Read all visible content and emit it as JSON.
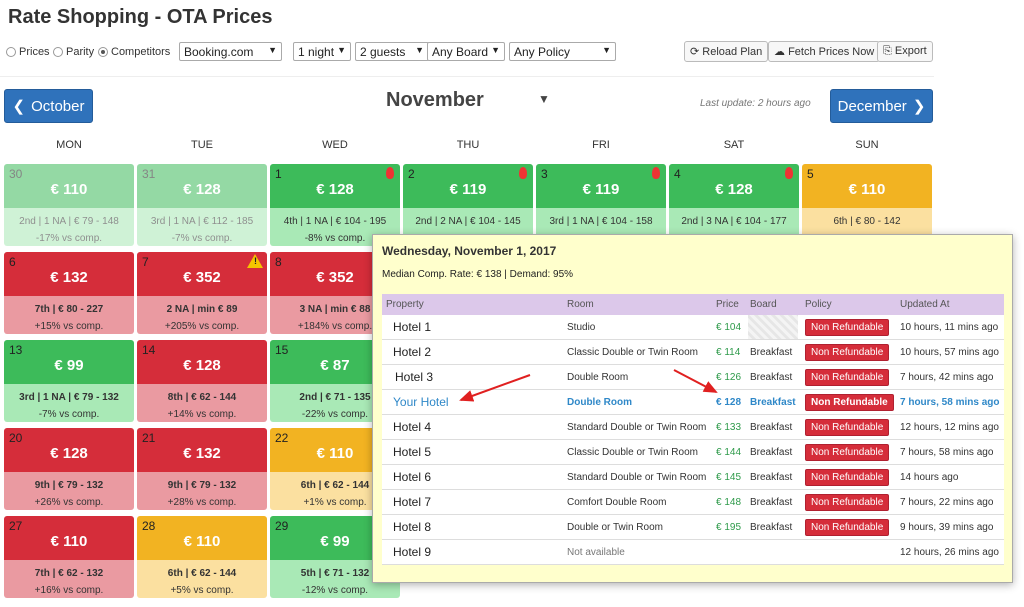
{
  "title": "Rate Shopping - OTA Prices",
  "modes": [
    {
      "label": "Prices",
      "selected": false
    },
    {
      "label": "Parity",
      "selected": false
    },
    {
      "label": "Competitors",
      "selected": true
    }
  ],
  "filters": {
    "channel": "Booking.com",
    "nights": "1 night",
    "guests": "2 guests",
    "board": "Any Board",
    "policy": "Any Policy"
  },
  "actions": {
    "reload": "Reload Plan",
    "fetch": "Fetch Prices Now",
    "export": "Export"
  },
  "nav": {
    "prev": "October",
    "next": "December",
    "month": "November",
    "last_update": "Last update: 2 hours ago"
  },
  "weekdays": [
    "MON",
    "TUE",
    "WED",
    "THU",
    "FRI",
    "SAT",
    "SUN"
  ],
  "calendar": {
    "r0": [
      {
        "day": "30",
        "price": "€ 110",
        "l1": "2nd | 1 NA | € 79 - 148",
        "l2": "-17% vs comp."
      },
      {
        "day": "31",
        "price": "€ 128",
        "l1": "3rd | 1 NA | € 112 - 185",
        "l2": "-7% vs comp."
      },
      {
        "day": "1",
        "price": "€ 128",
        "l1": "4th | 1 NA | € 104 - 195",
        "l2": "-8% vs comp."
      },
      {
        "day": "2",
        "price": "€ 119",
        "l1": "2nd | 2 NA | € 104 - 145",
        "l2": ""
      },
      {
        "day": "3",
        "price": "€ 119",
        "l1": "3rd | 1 NA | € 104 - 158",
        "l2": ""
      },
      {
        "day": "4",
        "price": "€ 128",
        "l1": "2nd | 3 NA | € 104 - 177",
        "l2": ""
      },
      {
        "day": "5",
        "price": "€ 110",
        "l1": "6th | € 80 - 142",
        "l2": ""
      }
    ],
    "r1": [
      {
        "day": "6",
        "price": "€ 132",
        "l1": "7th | € 80 - 227",
        "l2": "+15% vs comp."
      },
      {
        "day": "7",
        "price": "€ 352",
        "l1": "2 NA | min € 89",
        "l2": "+205% vs comp."
      },
      {
        "day": "8",
        "price": "€ 352",
        "l1": "3 NA | min € 88",
        "l2": "+184% vs comp."
      }
    ],
    "r2": [
      {
        "day": "13",
        "price": "€ 99",
        "l1": "3rd | 1 NA | € 79 - 132",
        "l2": "-7% vs comp."
      },
      {
        "day": "14",
        "price": "€ 128",
        "l1": "8th | € 62 - 144",
        "l2": "+14% vs comp."
      },
      {
        "day": "15",
        "price": "€ 87",
        "l1": "2nd | € 71 - 135",
        "l2": "-22% vs comp."
      }
    ],
    "r3": [
      {
        "day": "20",
        "price": "€ 128",
        "l1": "9th | € 79 - 132",
        "l2": "+26% vs comp."
      },
      {
        "day": "21",
        "price": "€ 132",
        "l1": "9th | € 79 - 132",
        "l2": "+28% vs comp."
      },
      {
        "day": "22",
        "price": "€ 110",
        "l1": "6th | € 62 - 144",
        "l2": "+1% vs comp."
      }
    ],
    "r4": [
      {
        "day": "27",
        "price": "€ 110",
        "l1": "7th | € 62 - 132",
        "l2": "+16% vs comp."
      },
      {
        "day": "28",
        "price": "€ 110",
        "l1": "6th | € 62 - 144",
        "l2": "+5% vs comp."
      },
      {
        "day": "29",
        "price": "€ 99",
        "l1": "5th | € 71 - 132",
        "l2": "-12% vs comp."
      }
    ]
  },
  "popup": {
    "title": "Wednesday, November 1, 2017",
    "stats": "Median Comp. Rate: € 138  |  Demand: 95%",
    "headers": {
      "property": "Property",
      "room": "Room",
      "price": "Price",
      "board": "Board",
      "policy": "Policy",
      "updated": "Updated At"
    },
    "rows": [
      {
        "property": "Hotel 1",
        "room": "Studio",
        "price": "€ 104",
        "board": "",
        "policy": "Non Refundable",
        "updated": "10 hours, 11 mins ago"
      },
      {
        "property": "Hotel 2",
        "room": "Classic Double or Twin Room",
        "price": "€ 114",
        "board": "Breakfast",
        "policy": "Non Refundable",
        "updated": "10 hours, 57 mins ago"
      },
      {
        "property": "Hotel 3",
        "room": "Double Room",
        "price": "€ 126",
        "board": "Breakfast",
        "policy": "Non Refundable",
        "updated": "7 hours, 42 mins ago"
      },
      {
        "property": "Your Hotel",
        "room": "Double Room",
        "price": "€ 128",
        "board": "Breakfast",
        "policy": "Non Refundable",
        "updated": "7 hours, 58 mins ago"
      },
      {
        "property": "Hotel 4",
        "room": "Standard Double or Twin Room",
        "price": "€ 133",
        "board": "Breakfast",
        "policy": "Non Refundable",
        "updated": "12 hours, 12 mins ago"
      },
      {
        "property": "Hotel 5",
        "room": "Classic Double or Twin Room",
        "price": "€ 144",
        "board": "Breakfast",
        "policy": "Non Refundable",
        "updated": "7 hours, 58 mins ago"
      },
      {
        "property": "Hotel 6",
        "room": "Standard Double or Twin Room",
        "price": "€ 145",
        "board": "Breakfast",
        "policy": "Non Refundable",
        "updated": "14 hours ago"
      },
      {
        "property": "Hotel 7",
        "room": "Comfort Double Room",
        "price": "€ 148",
        "board": "Breakfast",
        "policy": "Non Refundable",
        "updated": "7 hours, 22 mins ago"
      },
      {
        "property": "Hotel 8",
        "room": "Double or Twin Room",
        "price": "€ 195",
        "board": "Breakfast",
        "policy": "Non Refundable",
        "updated": "9 hours, 39 mins ago"
      },
      {
        "property": "Hotel 9",
        "room": "Not available",
        "price": "",
        "board": "",
        "policy": "",
        "updated": "12 hours, 26 mins ago"
      }
    ]
  },
  "colors": {
    "green": "#3dbb5a",
    "red": "#d52d3a",
    "yellow": "#f2b322",
    "nav_blue": "#2f72bb",
    "popup_bg": "#ffffcc",
    "table_header": "#dcc8ea"
  }
}
